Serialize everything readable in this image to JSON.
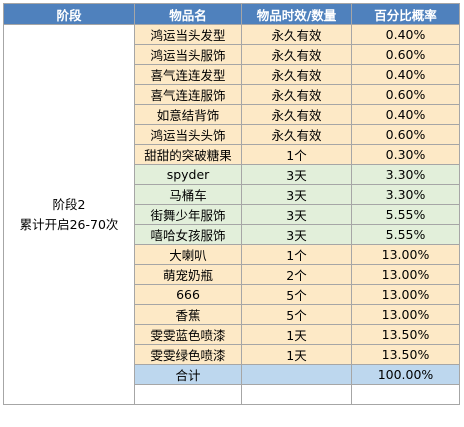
{
  "header": {
    "stage": "阶段",
    "item": "物品名",
    "duration": "物品时效/数量",
    "probability": "百分比概率"
  },
  "stage_cell": {
    "line1": "阶段2",
    "line2": "累计开启26-70次"
  },
  "rows": [
    {
      "item": "鸿运当头发型",
      "duration": "永久有效",
      "probability": "0.40%"
    },
    {
      "item": "鸿运当头服饰",
      "duration": "永久有效",
      "probability": "0.60%"
    },
    {
      "item": "喜气连连发型",
      "duration": "永久有效",
      "probability": "0.40%"
    },
    {
      "item": "喜气连连服饰",
      "duration": "永久有效",
      "probability": "0.60%"
    },
    {
      "item": "如意结背饰",
      "duration": "永久有效",
      "probability": "0.40%"
    },
    {
      "item": "鸿运当头头饰",
      "duration": "永久有效",
      "probability": "0.60%"
    },
    {
      "item": "甜甜的突破糖果",
      "duration": "1个",
      "probability": "0.30%"
    },
    {
      "item": "spyder",
      "duration": "3天",
      "probability": "3.30%"
    },
    {
      "item": "马桶车",
      "duration": "3天",
      "probability": "3.30%"
    },
    {
      "item": "街舞少年服饰",
      "duration": "3天",
      "probability": "5.55%"
    },
    {
      "item": "嘻哈女孩服饰",
      "duration": "3天",
      "probability": "5.55%"
    },
    {
      "item": "大喇叭",
      "duration": "1个",
      "probability": "13.00%"
    },
    {
      "item": "萌宠奶瓶",
      "duration": "2个",
      "probability": "13.00%"
    },
    {
      "item": "666",
      "duration": "5个",
      "probability": "13.00%"
    },
    {
      "item": "香蕉",
      "duration": "5个",
      "probability": "13.00%"
    },
    {
      "item": "雯雯蓝色喷漆",
      "duration": "1天",
      "probability": "13.50%"
    },
    {
      "item": "雯雯绿色喷漆",
      "duration": "1天",
      "probability": "13.50%"
    }
  ],
  "total": {
    "label": "合计",
    "duration": "",
    "probability": "100.00%"
  },
  "colors": {
    "header": "#4f81bd",
    "orange_rows": "#fde9c6",
    "green_rows": "#e2efda",
    "total_row": "#bdd7ee",
    "border": "#a6a6a6"
  }
}
